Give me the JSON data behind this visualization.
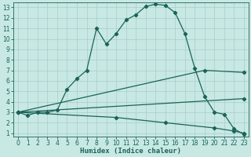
{
  "xlabel": "Humidex (Indice chaleur)",
  "bg_color": "#c8e8e4",
  "grid_color": "#a8ceca",
  "line_color": "#1a6457",
  "xlim": [
    -0.5,
    23.5
  ],
  "ylim": [
    0.7,
    13.5
  ],
  "xticks": [
    0,
    1,
    2,
    3,
    4,
    5,
    6,
    7,
    8,
    9,
    10,
    11,
    12,
    13,
    14,
    15,
    16,
    17,
    18,
    19,
    20,
    21,
    22,
    23
  ],
  "yticks": [
    1,
    2,
    3,
    4,
    5,
    6,
    7,
    8,
    9,
    10,
    11,
    12,
    13
  ],
  "curve1_x": [
    0,
    1,
    2,
    3,
    4,
    5,
    6,
    7,
    8,
    9,
    10,
    11,
    12,
    13,
    14,
    15,
    16,
    17,
    18,
    19,
    20,
    21,
    22,
    23
  ],
  "curve1_y": [
    3.0,
    2.7,
    3.0,
    3.0,
    3.2,
    5.2,
    6.2,
    7.0,
    11.0,
    9.5,
    10.5,
    11.8,
    12.3,
    13.1,
    13.3,
    13.2,
    12.5,
    10.5,
    7.2,
    4.5,
    3.0,
    2.8,
    1.4,
    0.9
  ],
  "curve2_x": [
    0,
    23
  ],
  "curve2_y": [
    3.0,
    4.3
  ],
  "curve3_x": [
    0,
    19,
    23
  ],
  "curve3_y": [
    3.0,
    7.0,
    6.8
  ],
  "curve4_x": [
    0,
    10,
    15,
    20,
    22,
    23
  ],
  "curve4_y": [
    3.0,
    2.5,
    2.0,
    1.5,
    1.2,
    1.0
  ],
  "lw": 0.9,
  "ms": 2.2,
  "tick_fs": 5.5,
  "label_fs": 6.5
}
